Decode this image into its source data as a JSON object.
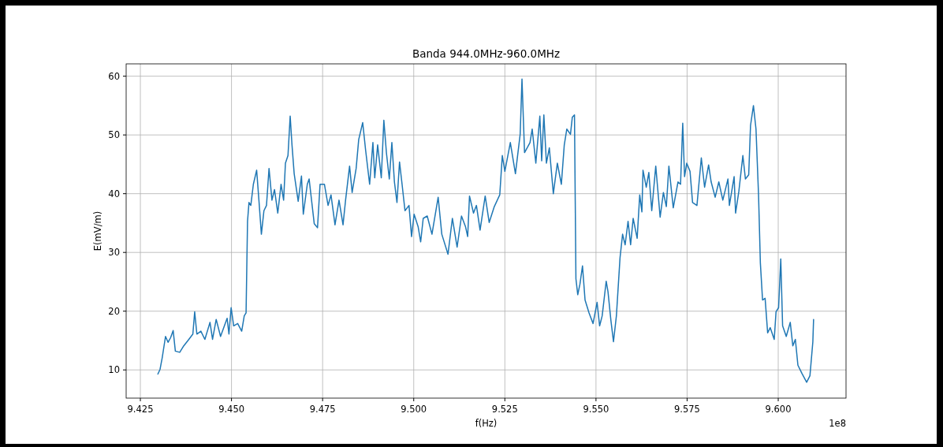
{
  "chart_data": {
    "type": "line",
    "title": "Banda 944.0MHz-960.0MHz",
    "xlabel": "f(Hz)",
    "ylabel": "E(mV/m)",
    "annotations": [
      "1e8"
    ],
    "grid": true,
    "xlim": [
      9.4211,
      9.6186
    ],
    "ylim": [
      5.2,
      62.1
    ],
    "xticks": [
      {
        "value": 9.425,
        "label": "9.425"
      },
      {
        "value": 9.45,
        "label": "9.450"
      },
      {
        "value": 9.475,
        "label": "9.475"
      },
      {
        "value": 9.5,
        "label": "9.500"
      },
      {
        "value": 9.525,
        "label": "9.525"
      },
      {
        "value": 9.55,
        "label": "9.550"
      },
      {
        "value": 9.575,
        "label": "9.575"
      },
      {
        "value": 9.6,
        "label": "9.600"
      }
    ],
    "yticks": [
      10,
      20,
      30,
      40,
      50,
      60
    ],
    "series": [
      {
        "color": "#1f77b4",
        "x": [
          9.4298,
          9.4304,
          9.431,
          9.4319,
          9.4326,
          9.4333,
          9.434,
          9.4346,
          9.4358,
          9.4369,
          9.4383,
          9.4394,
          9.4399,
          9.4405,
          9.4416,
          9.4427,
          9.4441,
          9.4448,
          9.4458,
          9.447,
          9.4488,
          9.4493,
          9.4499,
          9.4506,
          9.4517,
          9.4528,
          9.4535,
          9.454,
          9.4544,
          9.4548,
          9.4553,
          9.456,
          9.4569,
          9.4575,
          9.4582,
          9.4589,
          9.4596,
          9.4603,
          9.4611,
          9.4618,
          9.4627,
          9.4636,
          9.4643,
          9.4648,
          9.4655,
          9.4661,
          9.4666,
          9.4672,
          9.4683,
          9.4692,
          9.4697,
          9.4708,
          9.4713,
          9.4727,
          9.4736,
          9.4743,
          9.4755,
          9.4765,
          9.4773,
          9.4784,
          9.4795,
          9.4806,
          9.4813,
          9.4824,
          9.4831,
          9.4842,
          9.4849,
          9.486,
          9.4868,
          9.4879,
          9.4888,
          9.4893,
          9.4901,
          9.4911,
          9.4918,
          9.4925,
          9.4933,
          9.494,
          9.4947,
          9.4954,
          9.4961,
          9.4968,
          9.4976,
          9.4987,
          9.4994,
          9.5001,
          9.5012,
          9.5019,
          9.5026,
          9.5037,
          9.505,
          9.5067,
          9.5077,
          9.5094,
          9.5106,
          9.5119,
          9.5131,
          9.5142,
          9.5148,
          9.5153,
          9.5164,
          9.5172,
          9.5182,
          9.5196,
          9.5207,
          9.5221,
          9.5236,
          9.5243,
          9.525,
          9.5265,
          9.5279,
          9.5292,
          9.5297,
          9.5304,
          9.5319,
          9.5325,
          9.5335,
          9.5346,
          9.5351,
          9.5357,
          9.5364,
          9.5372,
          9.5383,
          9.5394,
          9.5405,
          9.5413,
          9.542,
          9.543,
          9.5435,
          9.5441,
          9.5445,
          9.545,
          9.5456,
          9.5463,
          9.547,
          9.5481,
          9.5492,
          9.5503,
          9.551,
          9.5517,
          9.5528,
          9.5533,
          9.5541,
          9.5548,
          9.5556,
          9.5566,
          9.5573,
          9.558,
          9.5588,
          9.5595,
          9.5602,
          9.5613,
          9.562,
          9.5626,
          9.5629,
          9.5638,
          9.5645,
          9.5653,
          9.5664,
          9.5676,
          9.5685,
          9.5693,
          9.57,
          9.5712,
          9.5725,
          9.5732,
          9.5738,
          9.5743,
          9.5749,
          9.5758,
          9.5765,
          9.5777,
          9.5789,
          9.5798,
          9.5809,
          9.5816,
          9.5827,
          9.5837,
          9.5848,
          9.5862,
          9.5866,
          9.5879,
          9.5883,
          9.5892,
          9.5903,
          9.591,
          9.5919,
          9.5924,
          9.5932,
          9.5939,
          9.5946,
          9.5951,
          9.5957,
          9.5964,
          9.5971,
          9.5978,
          9.5989,
          9.5994,
          9.6001,
          9.6007,
          9.6012,
          9.6022,
          9.6033,
          9.604,
          9.6047,
          9.6054,
          9.6065,
          9.6078,
          9.6087,
          9.6095,
          9.6097
        ],
        "values": [
          9.3,
          10.1,
          12.1,
          15.7,
          14.7,
          15.5,
          16.7,
          13.2,
          13.0,
          14.1,
          15.2,
          16.1,
          19.9,
          16.1,
          16.6,
          15.2,
          18.1,
          15.2,
          18.6,
          15.7,
          18.8,
          16.1,
          20.6,
          17.5,
          17.9,
          16.6,
          19.2,
          19.7,
          35.3,
          38.5,
          38.0,
          41.6,
          44.0,
          39.1,
          33.1,
          37.1,
          38.0,
          44.3,
          38.9,
          40.7,
          36.7,
          41.6,
          38.9,
          45.2,
          46.5,
          53.2,
          48.3,
          43.4,
          38.7,
          43.0,
          36.5,
          41.6,
          42.5,
          34.9,
          34.2,
          41.6,
          41.6,
          38.0,
          39.8,
          34.7,
          38.9,
          34.7,
          38.9,
          44.7,
          40.2,
          44.3,
          49.2,
          52.1,
          47.4,
          41.6,
          48.7,
          42.7,
          48.3,
          42.7,
          52.5,
          47.0,
          42.5,
          48.7,
          42.0,
          38.5,
          45.4,
          41.6,
          37.1,
          38.0,
          32.7,
          36.5,
          34.4,
          31.8,
          35.8,
          36.2,
          33.1,
          39.4,
          33.1,
          29.7,
          35.8,
          30.9,
          36.2,
          34.4,
          32.7,
          39.6,
          36.7,
          38.0,
          33.8,
          39.6,
          35.1,
          37.8,
          39.8,
          46.5,
          43.8,
          48.7,
          43.4,
          50.1,
          59.5,
          47.0,
          48.7,
          51.0,
          45.2,
          53.2,
          45.6,
          53.4,
          45.2,
          47.8,
          40.0,
          45.2,
          41.6,
          48.3,
          51.0,
          50.1,
          53.0,
          53.4,
          25.5,
          22.8,
          24.6,
          27.7,
          21.9,
          19.7,
          17.9,
          21.5,
          17.5,
          19.2,
          25.1,
          23.3,
          18.4,
          14.8,
          19.2,
          29.1,
          33.1,
          31.3,
          35.3,
          31.3,
          35.8,
          32.4,
          39.8,
          36.9,
          44.0,
          41.1,
          43.6,
          37.1,
          44.7,
          36.0,
          40.2,
          37.8,
          44.7,
          37.6,
          42.0,
          41.6,
          52.0,
          42.9,
          45.2,
          43.8,
          38.5,
          38.0,
          46.1,
          41.1,
          44.9,
          42.0,
          39.4,
          42.0,
          38.9,
          42.5,
          38.0,
          42.9,
          36.7,
          40.4,
          46.5,
          42.5,
          43.2,
          51.6,
          55.0,
          51.0,
          39.8,
          28.2,
          21.9,
          22.2,
          16.3,
          17.2,
          15.2,
          19.9,
          20.6,
          28.9,
          17.5,
          15.7,
          18.1,
          14.1,
          15.2,
          10.8,
          9.4,
          7.9,
          9.0,
          14.8,
          18.6
        ]
      }
    ]
  }
}
